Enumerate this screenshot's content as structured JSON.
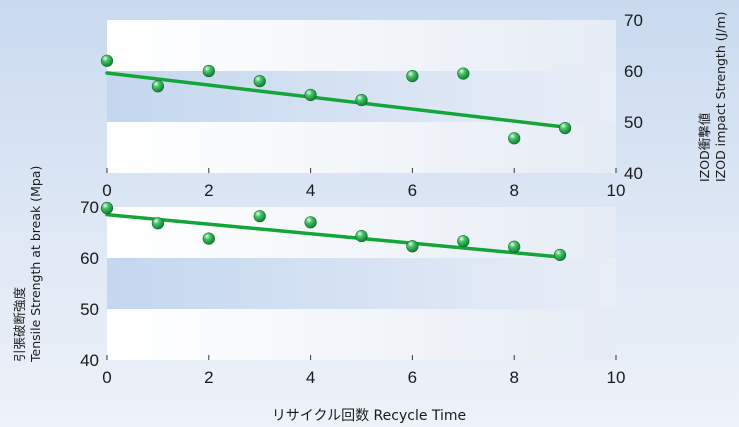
{
  "chart_data": [
    {
      "type": "scatter",
      "name": "izod",
      "ylabel_line1": "IZOD衝撃値",
      "ylabel_line2": "IZOD impact Strength (J/m)",
      "xlim": [
        0,
        10
      ],
      "ylim": [
        40,
        70
      ],
      "x_ticks": [
        0,
        2,
        4,
        6,
        8,
        10
      ],
      "y_ticks": [
        40,
        50,
        60,
        70
      ],
      "y_axis_side": "right",
      "points": [
        {
          "x": 0,
          "y": 62
        },
        {
          "x": 1,
          "y": 57
        },
        {
          "x": 2,
          "y": 60
        },
        {
          "x": 3,
          "y": 58
        },
        {
          "x": 4,
          "y": 55.3
        },
        {
          "x": 5,
          "y": 54.3
        },
        {
          "x": 6,
          "y": 59
        },
        {
          "x": 7,
          "y": 59.5
        },
        {
          "x": 8,
          "y": 46.8
        },
        {
          "x": 9,
          "y": 48.8
        }
      ],
      "trendline": {
        "x": [
          0,
          9
        ],
        "y": [
          59.6,
          49
        ]
      },
      "colors": {
        "line": "#13a538",
        "marker": "#2eb45a"
      }
    },
    {
      "type": "scatter",
      "name": "tensile",
      "ylabel_line1": "引張破断強度",
      "ylabel_line2": "Tensile Strength  at break (Mpa)",
      "xlim": [
        0,
        10
      ],
      "ylim": [
        40,
        70
      ],
      "x_ticks": [
        0,
        2,
        4,
        6,
        8,
        10
      ],
      "y_ticks": [
        40,
        50,
        60,
        70
      ],
      "y_axis_side": "left",
      "points": [
        {
          "x": 0,
          "y": 69.8
        },
        {
          "x": 1,
          "y": 66.8
        },
        {
          "x": 2,
          "y": 63.8
        },
        {
          "x": 3,
          "y": 68.2
        },
        {
          "x": 4,
          "y": 67
        },
        {
          "x": 5,
          "y": 64.3
        },
        {
          "x": 6,
          "y": 62.3
        },
        {
          "x": 7,
          "y": 63.3
        },
        {
          "x": 8,
          "y": 62.2
        },
        {
          "x": 8.9,
          "y": 60.6
        }
      ],
      "trendline": {
        "x": [
          0,
          8.9
        ],
        "y": [
          68.5,
          60.2
        ]
      },
      "colors": {
        "line": "#13a538",
        "marker": "#2eb45a"
      }
    }
  ],
  "xlabel": "リサイクル回数 Recycle Time"
}
